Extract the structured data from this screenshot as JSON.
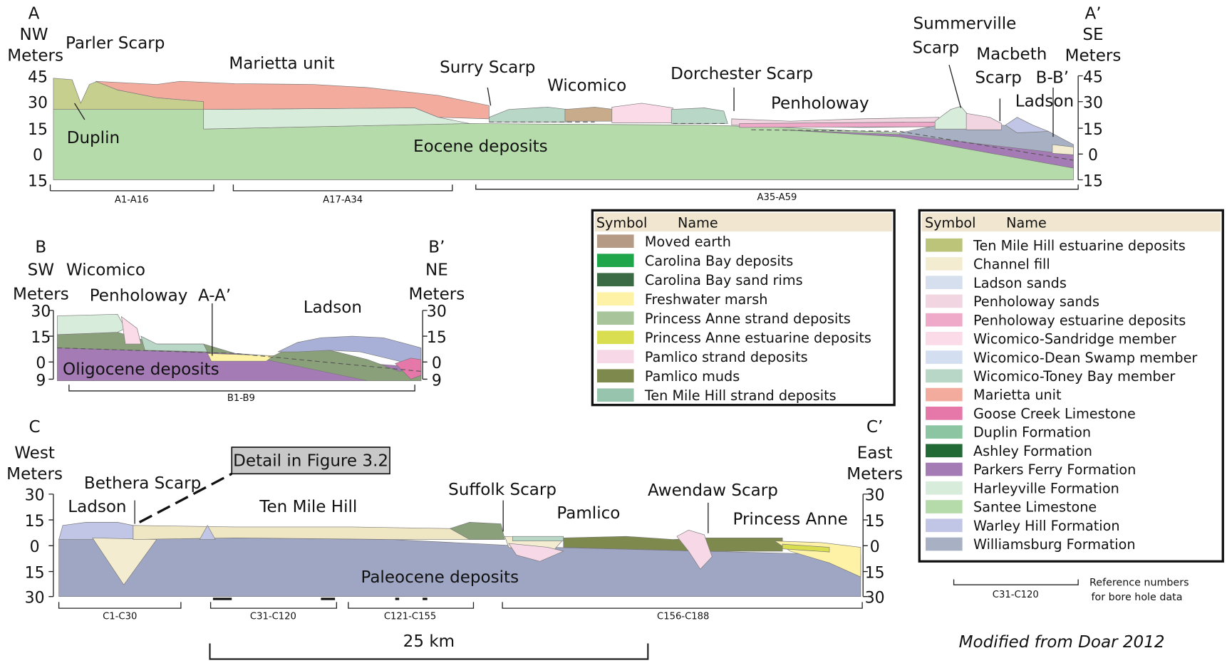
{
  "sections": [
    {
      "left": [
        "A",
        "NW",
        "Meters"
      ],
      "right": [
        "A’",
        "SE",
        "Meters"
      ],
      "depths": [
        "45",
        "30",
        "15",
        "0",
        "15"
      ],
      "labels": [
        "Parler Scarp",
        "Marietta unit",
        "Surry Scarp",
        "Wicomico",
        "Dorchester Scarp",
        "Penholoway",
        "Summerville",
        "Scarp",
        "Macbeth",
        "Scarp",
        "B-B’",
        "Ladson",
        "Duplin",
        "Eocene deposits"
      ],
      "boreholes": [
        "A1-A16",
        "A17-A34",
        "A35-A59"
      ]
    },
    {
      "left": [
        "B",
        "SW",
        "Meters"
      ],
      "right": [
        "B’",
        "NE",
        "Meters"
      ],
      "depths": [
        "30",
        "15",
        "0",
        "9"
      ],
      "labels": [
        "Wicomico",
        "Penholoway",
        "A-A’",
        "Ladson",
        "Oligocene deposits"
      ],
      "boreholes": [
        "B1-B9"
      ]
    },
    {
      "left": [
        "C",
        "West",
        "Meters"
      ],
      "right": [
        "C’",
        "East",
        "Meters"
      ],
      "depths": [
        "30",
        "15",
        "0",
        "15",
        "30"
      ],
      "labels": [
        "Ladson",
        "Bethera Scarp",
        "Ten Mile Hill",
        "Suffolk Scarp",
        "Pamlico",
        "Awendaw Scarp",
        "Princess Anne",
        "Paleocene deposits"
      ],
      "boreholes": [
        "C1-C30",
        "C31-C120",
        "C121-C155",
        "C156-C188"
      ]
    }
  ],
  "legend_1": {
    "header": [
      "Symbol",
      "Name"
    ],
    "items": [
      {
        "name": "Moved earth",
        "color": "#b59a86"
      },
      {
        "name": "Carolina Bay deposits",
        "color": "#1fa54a"
      },
      {
        "name": "Carolina Bay sand rims",
        "color": "#3a6b45"
      },
      {
        "name": "Freshwater marsh",
        "color": "#fdf2a6"
      },
      {
        "name": "Princess Anne strand deposits",
        "color": "#a8c49a"
      },
      {
        "name": "Princess Anne estuarine deposits",
        "color": "#d9dd50"
      },
      {
        "name": "Pamlico strand deposits",
        "color": "#f6d8e6"
      },
      {
        "name": "Pamlico muds",
        "color": "#7e8a4d"
      },
      {
        "name": "Ten Mile Hill strand deposits",
        "color": "#97c4ad"
      }
    ]
  },
  "legend_2": {
    "header": [
      "Symbol",
      "Name"
    ],
    "items": [
      {
        "name": "Ten Mile Hill estuarine deposits",
        "color": "#bcc47a"
      },
      {
        "name": "Channel fill",
        "color": "#f4ecd0"
      },
      {
        "name": "Ladson sands",
        "color": "#d5dfee"
      },
      {
        "name": "Penholoway sands",
        "color": "#f1d6e2"
      },
      {
        "name": "Penholoway estuarine deposits",
        "color": "#eeaac8"
      },
      {
        "name": "Wicomico-Sandridge member",
        "color": "#fadbe7"
      },
      {
        "name": "Wicomico-Dean Swamp member",
        "color": "#d3def1"
      },
      {
        "name": "Wicomico-Toney Bay member",
        "color": "#b9d7c6"
      },
      {
        "name": "Marietta unit",
        "color": "#f2ab9d"
      },
      {
        "name": "Goose Creek Limestone",
        "color": "#e678a9"
      },
      {
        "name": "Duplin Formation",
        "color": "#8bc5a2"
      },
      {
        "name": "Ashley Formation",
        "color": "#226a35"
      },
      {
        "name": "Parkers Ferry Formation",
        "color": "#a57bb6"
      },
      {
        "name": "Harleyville Formation",
        "color": "#d8ecdb"
      },
      {
        "name": "Santee Limestone",
        "color": "#b6dbaa"
      },
      {
        "name": "Warley Hill Formation",
        "color": "#c2c6e6"
      },
      {
        "name": "Williamsburg Formation",
        "color": "#a7b1c3"
      }
    ]
  },
  "detail_note": "Detail in Figure 3.2",
  "scale_bar": "25 km",
  "reference_example": "C31-C120",
  "reference_note": [
    "Reference numbers",
    "for bore hole data"
  ],
  "credit": "Modified from Doar 2012"
}
